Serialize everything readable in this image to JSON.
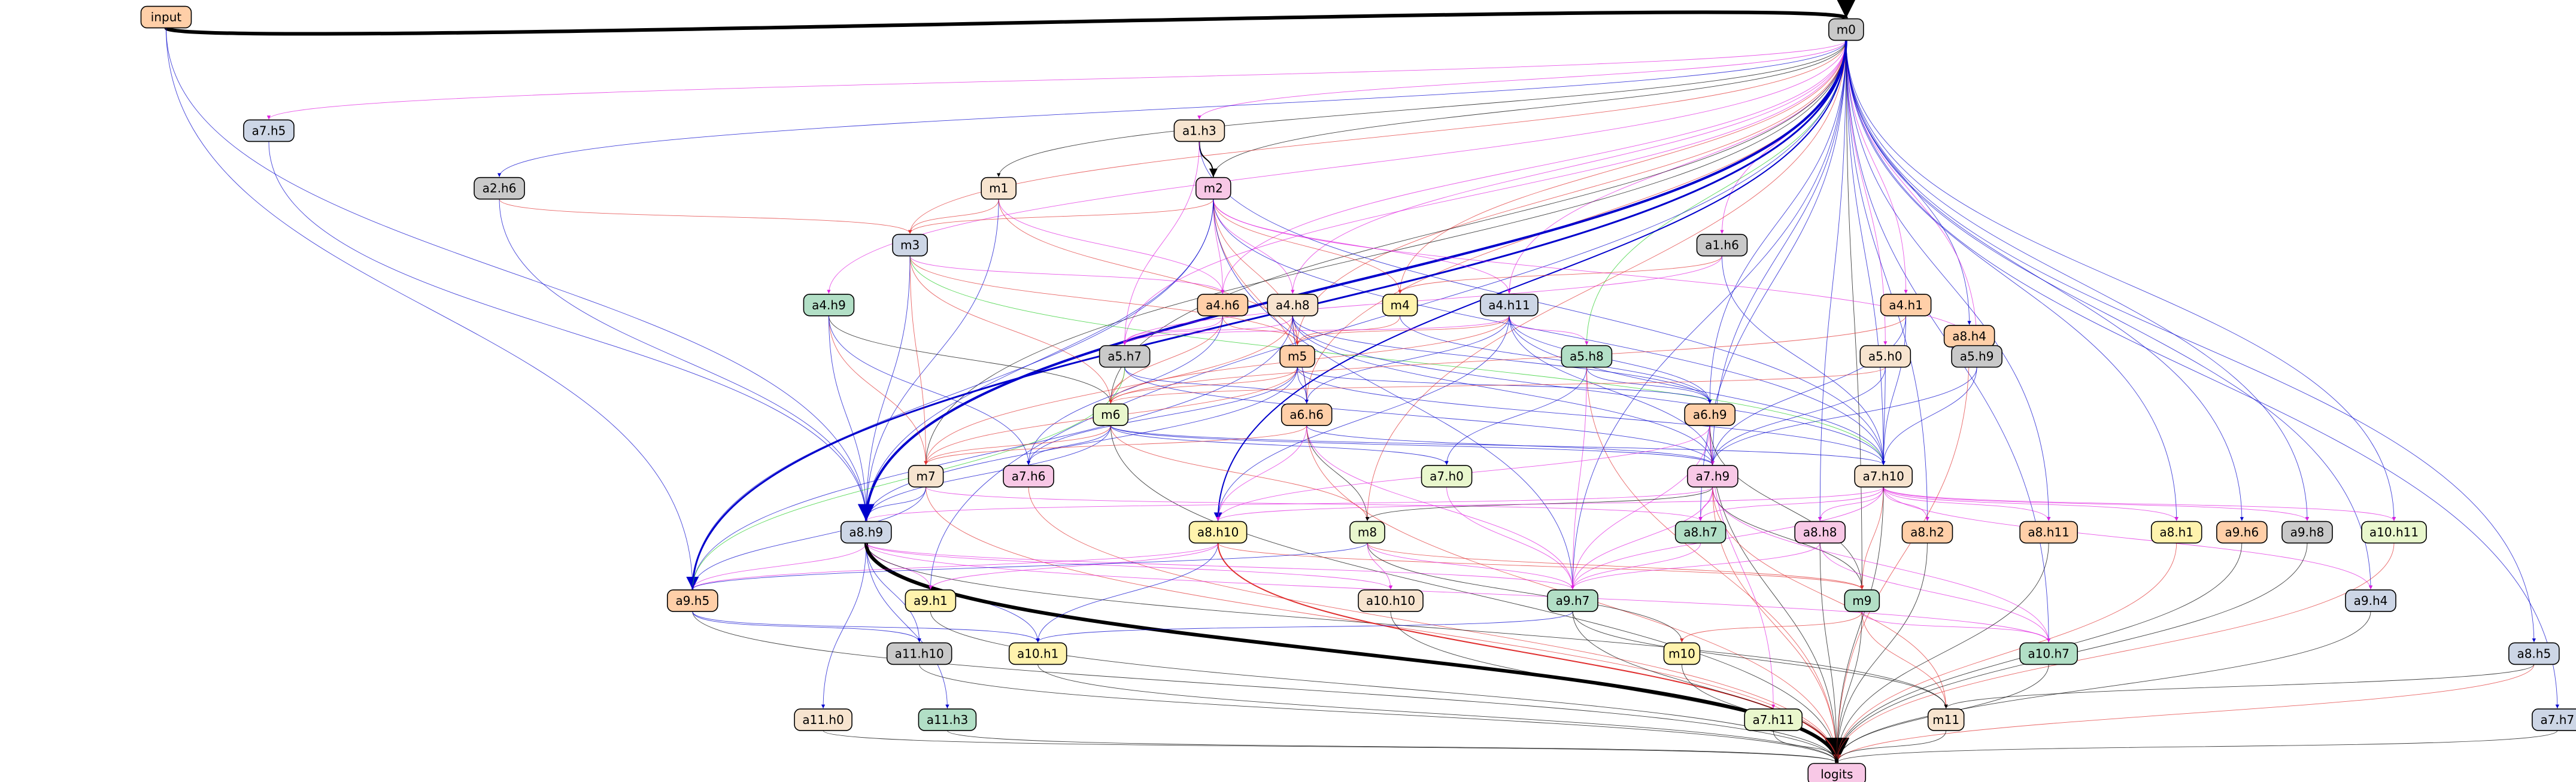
{
  "colors": {
    "orange": "#ffcfa8",
    "gray": "#c9c9c9",
    "bluegray": "#cdd6e6",
    "pink": "#f8c8e6",
    "peach": "#f7e4cf",
    "green": "#b2dfc6",
    "yellow": "#fff3ad",
    "lime": "#e9f7cd",
    "edge_black": "#000000",
    "edge_blue": "#0000cc",
    "edge_red": "#e03030",
    "edge_magenta": "#e020e0",
    "edge_green": "#22cc22"
  },
  "nodes": [
    {
      "id": "input",
      "label": "input",
      "color": "orange"
    },
    {
      "id": "m0",
      "label": "m0",
      "color": "gray"
    },
    {
      "id": "a7.h5",
      "label": "a7.h5",
      "color": "bluegray"
    },
    {
      "id": "a1.h3",
      "label": "a1.h3",
      "color": "peach"
    },
    {
      "id": "a2.h6",
      "label": "a2.h6",
      "color": "gray"
    },
    {
      "id": "m1",
      "label": "m1",
      "color": "peach"
    },
    {
      "id": "m2",
      "label": "m2",
      "color": "pink"
    },
    {
      "id": "m3",
      "label": "m3",
      "color": "bluegray"
    },
    {
      "id": "a1.h6",
      "label": "a1.h6",
      "color": "gray"
    },
    {
      "id": "a8.h4",
      "label": "a8.h4",
      "color": "orange"
    },
    {
      "id": "a4.h9",
      "label": "a4.h9",
      "color": "green"
    },
    {
      "id": "a4.h6",
      "label": "a4.h6",
      "color": "orange"
    },
    {
      "id": "a4.h8",
      "label": "a4.h8",
      "color": "peach"
    },
    {
      "id": "m4",
      "label": "m4",
      "color": "yellow"
    },
    {
      "id": "a4.h11",
      "label": "a4.h11",
      "color": "bluegray"
    },
    {
      "id": "a4.h1",
      "label": "a4.h1",
      "color": "orange"
    },
    {
      "id": "a5.h7",
      "label": "a5.h7",
      "color": "gray"
    },
    {
      "id": "m5",
      "label": "m5",
      "color": "orange"
    },
    {
      "id": "a5.h8",
      "label": "a5.h8",
      "color": "green"
    },
    {
      "id": "a5.h0",
      "label": "a5.h0",
      "color": "peach"
    },
    {
      "id": "a5.h9",
      "label": "a5.h9",
      "color": "gray"
    },
    {
      "id": "m6",
      "label": "m6",
      "color": "lime"
    },
    {
      "id": "a6.h6",
      "label": "a6.h6",
      "color": "orange"
    },
    {
      "id": "a6.h9",
      "label": "a6.h9",
      "color": "orange"
    },
    {
      "id": "m7",
      "label": "m7",
      "color": "peach"
    },
    {
      "id": "a7.h6",
      "label": "a7.h6",
      "color": "pink"
    },
    {
      "id": "a7.h0",
      "label": "a7.h0",
      "color": "lime"
    },
    {
      "id": "a7.h9",
      "label": "a7.h9",
      "color": "pink"
    },
    {
      "id": "a7.h10",
      "label": "a7.h10",
      "color": "peach"
    },
    {
      "id": "a8.h9",
      "label": "a8.h9",
      "color": "bluegray"
    },
    {
      "id": "a8.h10",
      "label": "a8.h10",
      "color": "yellow"
    },
    {
      "id": "m8",
      "label": "m8",
      "color": "lime"
    },
    {
      "id": "a8.h7",
      "label": "a8.h7",
      "color": "green"
    },
    {
      "id": "a8.h8",
      "label": "a8.h8",
      "color": "pink"
    },
    {
      "id": "a8.h2",
      "label": "a8.h2",
      "color": "orange"
    },
    {
      "id": "a8.h11",
      "label": "a8.h11",
      "color": "orange"
    },
    {
      "id": "a8.h1",
      "label": "a8.h1",
      "color": "yellow"
    },
    {
      "id": "a9.h6",
      "label": "a9.h6",
      "color": "orange"
    },
    {
      "id": "a9.h8",
      "label": "a9.h8",
      "color": "gray"
    },
    {
      "id": "a10.h11",
      "label": "a10.h11",
      "color": "lime"
    },
    {
      "id": "a9.h5",
      "label": "a9.h5",
      "color": "orange"
    },
    {
      "id": "a9.h1",
      "label": "a9.h1",
      "color": "yellow"
    },
    {
      "id": "a10.h10",
      "label": "a10.h10",
      "color": "peach"
    },
    {
      "id": "a9.h7",
      "label": "a9.h7",
      "color": "green"
    },
    {
      "id": "m9",
      "label": "m9",
      "color": "green"
    },
    {
      "id": "a9.h4",
      "label": "a9.h4",
      "color": "bluegray"
    },
    {
      "id": "a11.h10",
      "label": "a11.h10",
      "color": "gray"
    },
    {
      "id": "a10.h1",
      "label": "a10.h1",
      "color": "yellow"
    },
    {
      "id": "m10",
      "label": "m10",
      "color": "yellow"
    },
    {
      "id": "a10.h7",
      "label": "a10.h7",
      "color": "green"
    },
    {
      "id": "a8.h5",
      "label": "a8.h5",
      "color": "bluegray"
    },
    {
      "id": "a11.h0",
      "label": "a11.h0",
      "color": "peach"
    },
    {
      "id": "a11.h3",
      "label": "a11.h3",
      "color": "green"
    },
    {
      "id": "a7.h11",
      "label": "a7.h11",
      "color": "lime"
    },
    {
      "id": "m11",
      "label": "m11",
      "color": "peach"
    },
    {
      "id": "a7.h7",
      "label": "a7.h7",
      "color": "bluegray"
    },
    {
      "id": "logits",
      "label": "logits",
      "color": "pink"
    }
  ],
  "edges": [
    [
      "input",
      "m0",
      "black",
      6
    ],
    [
      "input",
      "a9.h5",
      "blue",
      1
    ],
    [
      "input",
      "a8.h9",
      "blue",
      1
    ],
    [
      "m0",
      "a7.h5",
      "magenta",
      1
    ],
    [
      "m0",
      "a1.h3",
      "magenta",
      1
    ],
    [
      "m0",
      "a2.h6",
      "blue",
      1
    ],
    [
      "m0",
      "m1",
      "black",
      1
    ],
    [
      "m0",
      "m2",
      "black",
      1
    ],
    [
      "m0",
      "m3",
      "red",
      1
    ],
    [
      "m0",
      "a1.h6",
      "magenta",
      1
    ],
    [
      "m0",
      "a8.h4",
      "blue",
      1
    ],
    [
      "m0",
      "a4.h9",
      "magenta",
      1
    ],
    [
      "m0",
      "a4.h6",
      "magenta",
      1
    ],
    [
      "m0",
      "a4.h8",
      "magenta",
      1
    ],
    [
      "m0",
      "m4",
      "red",
      1
    ],
    [
      "m0",
      "a4.h11",
      "magenta",
      1
    ],
    [
      "m0",
      "a4.h1",
      "magenta",
      1
    ],
    [
      "m0",
      "a5.h7",
      "magenta",
      1
    ],
    [
      "m0",
      "m5",
      "red",
      1
    ],
    [
      "m0",
      "a5.h8",
      "green",
      1
    ],
    [
      "m0",
      "a5.h0",
      "magenta",
      1
    ],
    [
      "m0",
      "a5.h9",
      "magenta",
      1
    ],
    [
      "m0",
      "m6",
      "black",
      1
    ],
    [
      "m0",
      "a6.h6",
      "red",
      1
    ],
    [
      "m0",
      "a6.h9",
      "blue",
      1
    ],
    [
      "m0",
      "m7",
      "black",
      1
    ],
    [
      "m0",
      "a7.h9",
      "blue",
      1
    ],
    [
      "m0",
      "a7.h10",
      "blue",
      1
    ],
    [
      "m0",
      "a8.h9",
      "blue",
      4
    ],
    [
      "m0",
      "a8.h10",
      "blue",
      2
    ],
    [
      "m0",
      "m8",
      "red",
      1
    ],
    [
      "m0",
      "a8.h7",
      "blue",
      1
    ],
    [
      "m0",
      "a8.h8",
      "blue",
      1
    ],
    [
      "m0",
      "a8.h2",
      "blue",
      1
    ],
    [
      "m0",
      "a8.h11",
      "blue",
      1
    ],
    [
      "m0",
      "a8.h1",
      "blue",
      1
    ],
    [
      "m0",
      "a9.h6",
      "blue",
      1
    ],
    [
      "m0",
      "a9.h8",
      "blue",
      1
    ],
    [
      "m0",
      "a10.h11",
      "blue",
      1
    ],
    [
      "m0",
      "a9.h5",
      "blue",
      3
    ],
    [
      "m0",
      "a9.h1",
      "blue",
      1
    ],
    [
      "m0",
      "a9.h7",
      "blue",
      1
    ],
    [
      "m0",
      "m9",
      "black",
      1
    ],
    [
      "m0",
      "a9.h4",
      "blue",
      1
    ],
    [
      "m0",
      "a10.h7",
      "blue",
      1
    ],
    [
      "m0",
      "a8.h5",
      "blue",
      1
    ],
    [
      "m0",
      "a7.h7",
      "blue",
      1
    ],
    [
      "a1.h3",
      "m2",
      "black",
      2
    ],
    [
      "a1.h3",
      "a7.h10",
      "blue",
      1
    ],
    [
      "a1.h3",
      "a5.h7",
      "magenta",
      1
    ],
    [
      "m1",
      "m3",
      "red",
      1
    ],
    [
      "m1",
      "a4.h6",
      "magenta",
      1
    ],
    [
      "m1",
      "a8.h9",
      "blue",
      1
    ],
    [
      "m1",
      "m5",
      "red",
      1
    ],
    [
      "m2",
      "m3",
      "red",
      1
    ],
    [
      "m2",
      "a4.h6",
      "magenta",
      1
    ],
    [
      "m2",
      "a4.h8",
      "magenta",
      1
    ],
    [
      "m2",
      "m4",
      "red",
      1
    ],
    [
      "m2",
      "a4.h11",
      "magenta",
      1
    ],
    [
      "m2",
      "m5",
      "red",
      1
    ],
    [
      "m2",
      "a6.h6",
      "red",
      1
    ],
    [
      "m2",
      "a7.h10",
      "blue",
      1
    ],
    [
      "m2",
      "a9.h5",
      "blue",
      1
    ],
    [
      "m2",
      "a5.h9",
      "magenta",
      1
    ],
    [
      "m2",
      "a8.h9",
      "blue",
      1
    ],
    [
      "m2",
      "a9.h7",
      "blue",
      1
    ],
    [
      "m3",
      "a4.h6",
      "magenta",
      1
    ],
    [
      "m3",
      "m5",
      "red",
      1
    ],
    [
      "m3",
      "m6",
      "red",
      1
    ],
    [
      "m3",
      "m7",
      "red",
      1
    ],
    [
      "m3",
      "a7.h10",
      "green",
      1
    ],
    [
      "m3",
      "a8.h9",
      "blue",
      1
    ],
    [
      "a2.h6",
      "a8.h9",
      "blue",
      1
    ],
    [
      "a2.h6",
      "m3",
      "red",
      1
    ],
    [
      "a1.h6",
      "m4",
      "red",
      1
    ],
    [
      "a1.h6",
      "a7.h10",
      "blue",
      1
    ],
    [
      "a1.h6",
      "a5.h7",
      "magenta",
      1
    ],
    [
      "a4.h9",
      "m6",
      "black",
      1
    ],
    [
      "a4.h9",
      "m7",
      "red",
      1
    ],
    [
      "a4.h9",
      "a8.h9",
      "blue",
      1
    ],
    [
      "a4.h9",
      "a7.h6",
      "blue",
      1
    ],
    [
      "a4.h6",
      "a5.h7",
      "magenta",
      1
    ],
    [
      "a4.h6",
      "m5",
      "red",
      1
    ],
    [
      "a4.h6",
      "m6",
      "red",
      1
    ],
    [
      "a4.h6",
      "a7.h6",
      "blue",
      1
    ],
    [
      "a4.h8",
      "a5.h7",
      "magenta",
      1
    ],
    [
      "a4.h8",
      "m5",
      "red",
      1
    ],
    [
      "a4.h8",
      "a6.h6",
      "blue",
      1
    ],
    [
      "a4.h8",
      "a6.h9",
      "blue",
      1
    ],
    [
      "a4.h8",
      "a7.h9",
      "blue",
      1
    ],
    [
      "a4.h8",
      "a7.h10",
      "blue",
      1
    ],
    [
      "a4.h8",
      "m7",
      "red",
      1
    ],
    [
      "a4.h8",
      "a9.h5",
      "blue",
      1
    ],
    [
      "m4",
      "m5",
      "red",
      1
    ],
    [
      "m4",
      "a6.h9",
      "blue",
      1
    ],
    [
      "a4.h11",
      "a5.h7",
      "magenta",
      1
    ],
    [
      "a4.h11",
      "m5",
      "red",
      1
    ],
    [
      "a4.h11",
      "a5.h8",
      "magenta",
      1
    ],
    [
      "a4.h11",
      "a6.h6",
      "blue",
      1
    ],
    [
      "a4.h11",
      "a6.h9",
      "blue",
      1
    ],
    [
      "a4.h11",
      "a7.h9",
      "blue",
      1
    ],
    [
      "a4.h11",
      "a7.h10",
      "blue",
      1
    ],
    [
      "a4.h11",
      "m6",
      "red",
      1
    ],
    [
      "a4.h11",
      "a8.h10",
      "blue",
      1
    ],
    [
      "a4.h1",
      "a7.h10",
      "blue",
      1
    ],
    [
      "a4.h1",
      "a7.h9",
      "blue",
      1
    ],
    [
      "a4.h1",
      "m6",
      "red",
      1
    ],
    [
      "a5.h7",
      "m6",
      "red",
      1
    ],
    [
      "a5.h7",
      "a6.h6",
      "blue",
      1
    ],
    [
      "a5.h7",
      "a7.h9",
      "blue",
      1
    ],
    [
      "a5.h7",
      "a9.h5",
      "green",
      1
    ],
    [
      "m5",
      "m6",
      "red",
      1
    ],
    [
      "m5",
      "a6.h6",
      "blue",
      1
    ],
    [
      "m5",
      "a6.h9",
      "blue",
      1
    ],
    [
      "m5",
      "a7.h10",
      "blue",
      1
    ],
    [
      "m5",
      "m7",
      "red",
      1
    ],
    [
      "m5",
      "a8.h9",
      "blue",
      1
    ],
    [
      "m5",
      "a7.h6",
      "blue",
      1
    ],
    [
      "a5.h8",
      "a6.h9",
      "blue",
      1
    ],
    [
      "a5.h8",
      "a7.h0",
      "blue",
      1
    ],
    [
      "a5.h8",
      "a9.h7",
      "magenta",
      1
    ],
    [
      "a5.h8",
      "logits",
      "red",
      1
    ],
    [
      "a5.h0",
      "a7.h9",
      "blue",
      1
    ],
    [
      "a5.h0",
      "a7.h10",
      "blue",
      1
    ],
    [
      "a5.h0",
      "m6",
      "red",
      1
    ],
    [
      "a5.h9",
      "a7.h9",
      "blue",
      1
    ],
    [
      "a5.h9",
      "a7.h10",
      "blue",
      1
    ],
    [
      "m6",
      "m7",
      "red",
      1
    ],
    [
      "m6",
      "a7.h6",
      "blue",
      1
    ],
    [
      "m6",
      "a7.h0",
      "blue",
      1
    ],
    [
      "m6",
      "a7.h9",
      "blue",
      1
    ],
    [
      "m6",
      "a7.h10",
      "blue",
      1
    ],
    [
      "m6",
      "a8.h9",
      "blue",
      1
    ],
    [
      "m6",
      "logits",
      "black",
      1
    ],
    [
      "m6",
      "m8",
      "red",
      1
    ],
    [
      "a6.h6",
      "m7",
      "red",
      1
    ],
    [
      "a6.h6",
      "a7.h9",
      "blue",
      1
    ],
    [
      "a6.h6",
      "a8.h10",
      "magenta",
      1
    ],
    [
      "a6.h6",
      "m8",
      "black",
      1
    ],
    [
      "a6.h6",
      "logits",
      "red",
      1
    ],
    [
      "a6.h6",
      "a9.h7",
      "magenta",
      1
    ],
    [
      "a6.h9",
      "a7.h9",
      "magenta",
      1
    ],
    [
      "a6.h9",
      "a8.h10",
      "magenta",
      1
    ],
    [
      "a6.h9",
      "m9",
      "black",
      1
    ],
    [
      "a6.h9",
      "a9.h7",
      "magenta",
      1
    ],
    [
      "a6.h9",
      "logits",
      "black",
      1
    ],
    [
      "a6.h9",
      "a7.h11",
      "magenta",
      1
    ],
    [
      "m7",
      "a8.h9",
      "blue",
      1
    ],
    [
      "m7",
      "a8.h7",
      "magenta",
      1
    ],
    [
      "m7",
      "a9.h5",
      "blue",
      1
    ],
    [
      "m7",
      "logits",
      "red",
      1
    ],
    [
      "a7.h6",
      "logits",
      "red",
      1
    ],
    [
      "a7.h0",
      "a9.h7",
      "magenta",
      1
    ],
    [
      "a7.h9",
      "a8.h9",
      "magenta",
      1
    ],
    [
      "a7.h9",
      "m8",
      "black",
      1
    ],
    [
      "a7.h9",
      "a8.h7",
      "magenta",
      1
    ],
    [
      "a7.h9",
      "a9.h7",
      "magenta",
      1
    ],
    [
      "a7.h9",
      "m9",
      "black",
      1
    ],
    [
      "a7.h9",
      "m11",
      "red",
      1
    ],
    [
      "a7.h9",
      "logits",
      "red",
      1
    ],
    [
      "a7.h9",
      "a10.h7",
      "magenta",
      1
    ],
    [
      "a7.h10",
      "a8.h10",
      "magenta",
      1
    ],
    [
      "a7.h10",
      "a8.h7",
      "magenta",
      1
    ],
    [
      "a7.h10",
      "a8.h8",
      "magenta",
      1
    ],
    [
      "a7.h10",
      "a8.h2",
      "magenta",
      1
    ],
    [
      "a7.h10",
      "a8.h11",
      "magenta",
      1
    ],
    [
      "a7.h10",
      "a8.h1",
      "magenta",
      1
    ],
    [
      "a7.h10",
      "a9.h8",
      "magenta",
      1
    ],
    [
      "a7.h10",
      "a10.h11",
      "magenta",
      1
    ],
    [
      "a7.h10",
      "a9.h7",
      "magenta",
      1
    ],
    [
      "a7.h10",
      "m9",
      "red",
      1
    ],
    [
      "a7.h10",
      "a9.h4",
      "magenta",
      1
    ],
    [
      "a7.h10",
      "logits",
      "black",
      1
    ],
    [
      "a8.h9",
      "a9.h5",
      "magenta",
      1
    ],
    [
      "a8.h9",
      "a9.h1",
      "magenta",
      1
    ],
    [
      "a8.h9",
      "a10.h10",
      "magenta",
      1
    ],
    [
      "a8.h9",
      "a9.h7",
      "magenta",
      1
    ],
    [
      "a8.h9",
      "a11.h10",
      "blue",
      1
    ],
    [
      "a8.h9",
      "a10.h1",
      "blue",
      1
    ],
    [
      "a8.h9",
      "a11.h0",
      "blue",
      1
    ],
    [
      "a8.h9",
      "a11.h3",
      "blue",
      1
    ],
    [
      "a8.h9",
      "logits",
      "black",
      6
    ],
    [
      "a8.h9",
      "m11",
      "black",
      1
    ],
    [
      "a8.h9",
      "a10.h7",
      "magenta",
      1
    ],
    [
      "a8.h10",
      "a9.h5",
      "magenta",
      1
    ],
    [
      "a8.h10",
      "a9.h1",
      "magenta",
      1
    ],
    [
      "a8.h10",
      "a10.h1",
      "blue",
      1
    ],
    [
      "a8.h10",
      "logits",
      "red",
      2
    ],
    [
      "a8.h10",
      "m9",
      "red",
      1
    ],
    [
      "m8",
      "a9.h5",
      "blue",
      1
    ],
    [
      "m8",
      "a9.h7",
      "magenta",
      1
    ],
    [
      "m8",
      "m9",
      "red",
      1
    ],
    [
      "m8",
      "m10",
      "black",
      1
    ],
    [
      "m8",
      "a10.h10",
      "magenta",
      1
    ],
    [
      "a8.h7",
      "a9.h7",
      "magenta",
      1
    ],
    [
      "a8.h8",
      "a9.h7",
      "magenta",
      1
    ],
    [
      "a8.h8",
      "a10.h7",
      "magenta",
      1
    ],
    [
      "a8.h8",
      "logits",
      "black",
      1
    ],
    [
      "a8.h2",
      "logits",
      "black",
      1
    ],
    [
      "a8.h11",
      "logits",
      "black",
      1
    ],
    [
      "a8.h1",
      "logits",
      "red",
      1
    ],
    [
      "a9.h6",
      "logits",
      "black",
      1
    ],
    [
      "a9.h8",
      "logits",
      "black",
      1
    ],
    [
      "a10.h11",
      "logits",
      "red",
      1
    ],
    [
      "a8.h4",
      "logits",
      "red",
      1
    ],
    [
      "a9.h5",
      "logits",
      "black",
      1
    ],
    [
      "a9.h5",
      "a10.h1",
      "blue",
      1
    ],
    [
      "a9.h5",
      "a11.h10",
      "blue",
      1
    ],
    [
      "a9.h1",
      "logits",
      "black",
      1
    ],
    [
      "a10.h10",
      "logits",
      "black",
      1
    ],
    [
      "a9.h7",
      "logits",
      "black",
      1
    ],
    [
      "a9.h7",
      "a10.h1",
      "blue",
      1
    ],
    [
      "a9.h7",
      "m11",
      "black",
      1
    ],
    [
      "m9",
      "m10",
      "red",
      1
    ],
    [
      "m9",
      "m11",
      "red",
      1
    ],
    [
      "m9",
      "logits",
      "black",
      1
    ],
    [
      "m9",
      "a10.h7",
      "magenta",
      1
    ],
    [
      "a9.h4",
      "logits",
      "black",
      1
    ],
    [
      "a11.h10",
      "logits",
      "black",
      1
    ],
    [
      "a10.h1",
      "logits",
      "black",
      1
    ],
    [
      "m10",
      "logits",
      "black",
      1
    ],
    [
      "a10.h7",
      "logits",
      "black",
      1
    ],
    [
      "a8.h5",
      "logits",
      "red",
      1
    ],
    [
      "a8.h5",
      "m11",
      "black",
      1
    ],
    [
      "a11.h0",
      "logits",
      "black",
      1
    ],
    [
      "a11.h3",
      "logits",
      "black",
      1
    ],
    [
      "a7.h11",
      "logits",
      "black",
      1
    ],
    [
      "m11",
      "logits",
      "black",
      1
    ],
    [
      "a7.h7",
      "logits",
      "black",
      1
    ],
    [
      "a7.h5",
      "a8.h9",
      "blue",
      1
    ]
  ]
}
